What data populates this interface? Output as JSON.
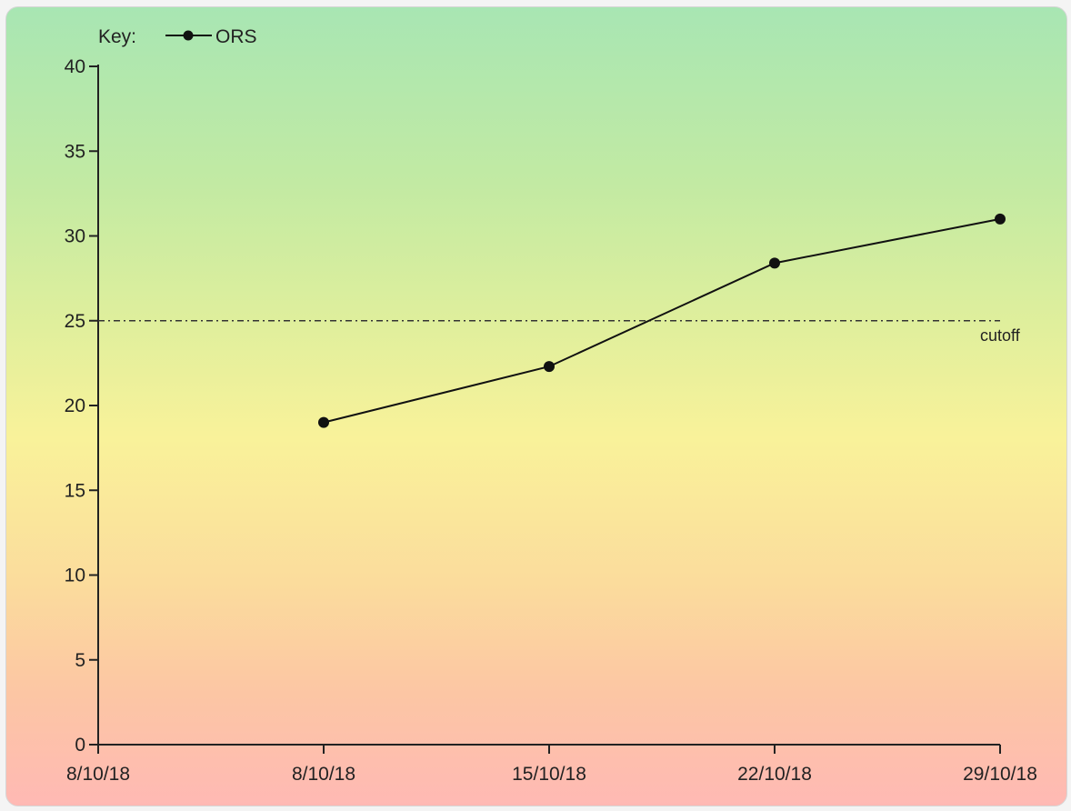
{
  "legend": {
    "prefix": "Key:",
    "series_label": "ORS"
  },
  "chart_data": {
    "type": "line",
    "categories": [
      "8/10/18",
      "8/10/18",
      "15/10/18",
      "22/10/18",
      "29/10/18"
    ],
    "series": [
      {
        "name": "ORS",
        "values": [
          null,
          19.0,
          22.3,
          28.4,
          31.0
        ],
        "marker": "circle",
        "color": "#111111"
      }
    ],
    "reference_lines": [
      {
        "label": "cutoff",
        "value": 25,
        "style": "dash-dot"
      }
    ],
    "ylim": [
      0,
      40
    ],
    "yticks": [
      0,
      5,
      10,
      15,
      20,
      25,
      30,
      35,
      40
    ],
    "title": "",
    "xlabel": "",
    "ylabel": "",
    "grid": false,
    "legend_position": "top-left",
    "background": "vertical gradient green to yellow to pink"
  }
}
